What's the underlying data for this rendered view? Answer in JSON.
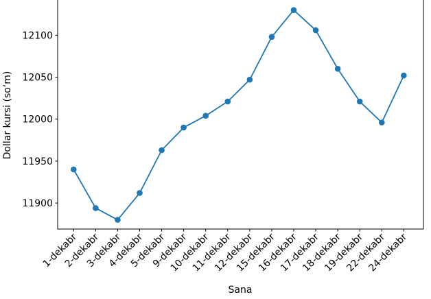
{
  "figure": {
    "background": "#ffffff"
  },
  "chart_data": {
    "type": "line",
    "title": "",
    "xlabel": "Sana",
    "ylabel": "Dollar kursi (soʻm)",
    "categories": [
      "1-dekabr",
      "2-dekabr",
      "3-dekabr",
      "4-dekabr",
      "5-dekabr",
      "9-dekabr",
      "10-dekabr",
      "11-dekabr",
      "12-dekabr",
      "15-dekabr",
      "16-dekabr",
      "17-dekabr",
      "18-dekabr",
      "19-dekabr",
      "22-dekabr",
      "24-dekabr"
    ],
    "values": [
      11940,
      11894,
      11880,
      11912,
      11963,
      11990,
      12004,
      12021,
      12047,
      12098,
      12130,
      12106,
      12060,
      12021,
      11996,
      12052
    ],
    "yticks": [
      11900,
      11950,
      12000,
      12050,
      12100
    ],
    "ylim": [
      11869,
      12142
    ],
    "grid": false,
    "legend": null,
    "line_color": "#1f77b4",
    "marker": "o",
    "marker_color": "#1f77b4",
    "spine_color": "#000000",
    "top_spine_visible": false
  }
}
